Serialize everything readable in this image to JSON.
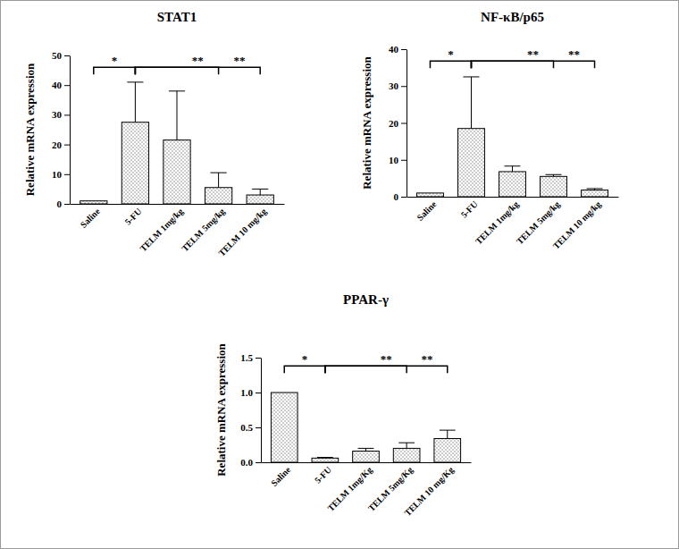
{
  "chart_data": [
    {
      "type": "bar",
      "title": "STAT1",
      "y_label": "Relative mRNA expression",
      "categories": [
        "Saline",
        "5-FU",
        "TELM 1mg/kg",
        "TELM 5mg/kg",
        "TELM 10 mg/kg"
      ],
      "values": [
        1,
        27.5,
        21.5,
        5.5,
        3
      ],
      "errors": [
        0,
        13.5,
        16.5,
        5,
        2
      ],
      "color": "#7f7f7f",
      "ylim": [
        0,
        50
      ],
      "yticks": [
        0,
        10,
        20,
        30,
        40,
        50
      ],
      "annotations": [
        {
          "text": "*",
          "between": [
            "Saline",
            "5-FU"
          ]
        },
        {
          "text": "**",
          "between": [
            "5-FU",
            "TELM 5mg/kg"
          ]
        },
        {
          "text": "**",
          "between": [
            "5-FU",
            "TELM 10 mg/kg"
          ]
        }
      ]
    },
    {
      "type": "bar",
      "title": "NF-κB/p65",
      "y_label": "Relative mRNA expression",
      "categories": [
        "Saline",
        "5-FU",
        "TELM 1mg/kg",
        "TELM 5mg/kg",
        "TELM 10 mg/kg"
      ],
      "values": [
        1,
        18.5,
        6.8,
        5.5,
        1.8
      ],
      "errors": [
        0,
        14,
        1.5,
        0.5,
        0.4
      ],
      "color": "#7f7f7f",
      "ylim": [
        0,
        40
      ],
      "yticks": [
        0,
        10,
        20,
        30,
        40
      ],
      "annotations": [
        {
          "text": "*",
          "between": [
            "Saline",
            "5-FU"
          ]
        },
        {
          "text": "**",
          "between": [
            "5-FU",
            "TELM 5mg/kg"
          ]
        },
        {
          "text": "**",
          "between": [
            "5-FU",
            "TELM 10 mg/kg"
          ]
        }
      ]
    },
    {
      "type": "bar",
      "title": "PPAR-γ",
      "y_label": "Relative mRNA expression",
      "categories": [
        "Saline",
        "5-FU",
        "TELM 1mg/Kg",
        "TELM 5mg/Kg",
        "TELM 10 mg/Kg"
      ],
      "values": [
        1.0,
        0.06,
        0.16,
        0.2,
        0.34
      ],
      "errors": [
        0,
        0.01,
        0.04,
        0.08,
        0.12
      ],
      "color": "#7f7f7f",
      "ylim": [
        0,
        1.5
      ],
      "yticks": [
        {
          "value": 0,
          "label": "0.0"
        },
        {
          "value": 0.5,
          "label": "0.5"
        },
        {
          "value": 1.0,
          "label": "1.0"
        },
        {
          "value": 1.5,
          "label": "1.5"
        }
      ],
      "annotations": [
        {
          "text": "*",
          "between": [
            "Saline",
            "5-FU"
          ]
        },
        {
          "text": "**",
          "between": [
            "5-FU",
            "TELM 5mg/Kg"
          ]
        },
        {
          "text": "**",
          "between": [
            "5-FU",
            "TELM 10 mg/Kg"
          ]
        }
      ]
    }
  ]
}
